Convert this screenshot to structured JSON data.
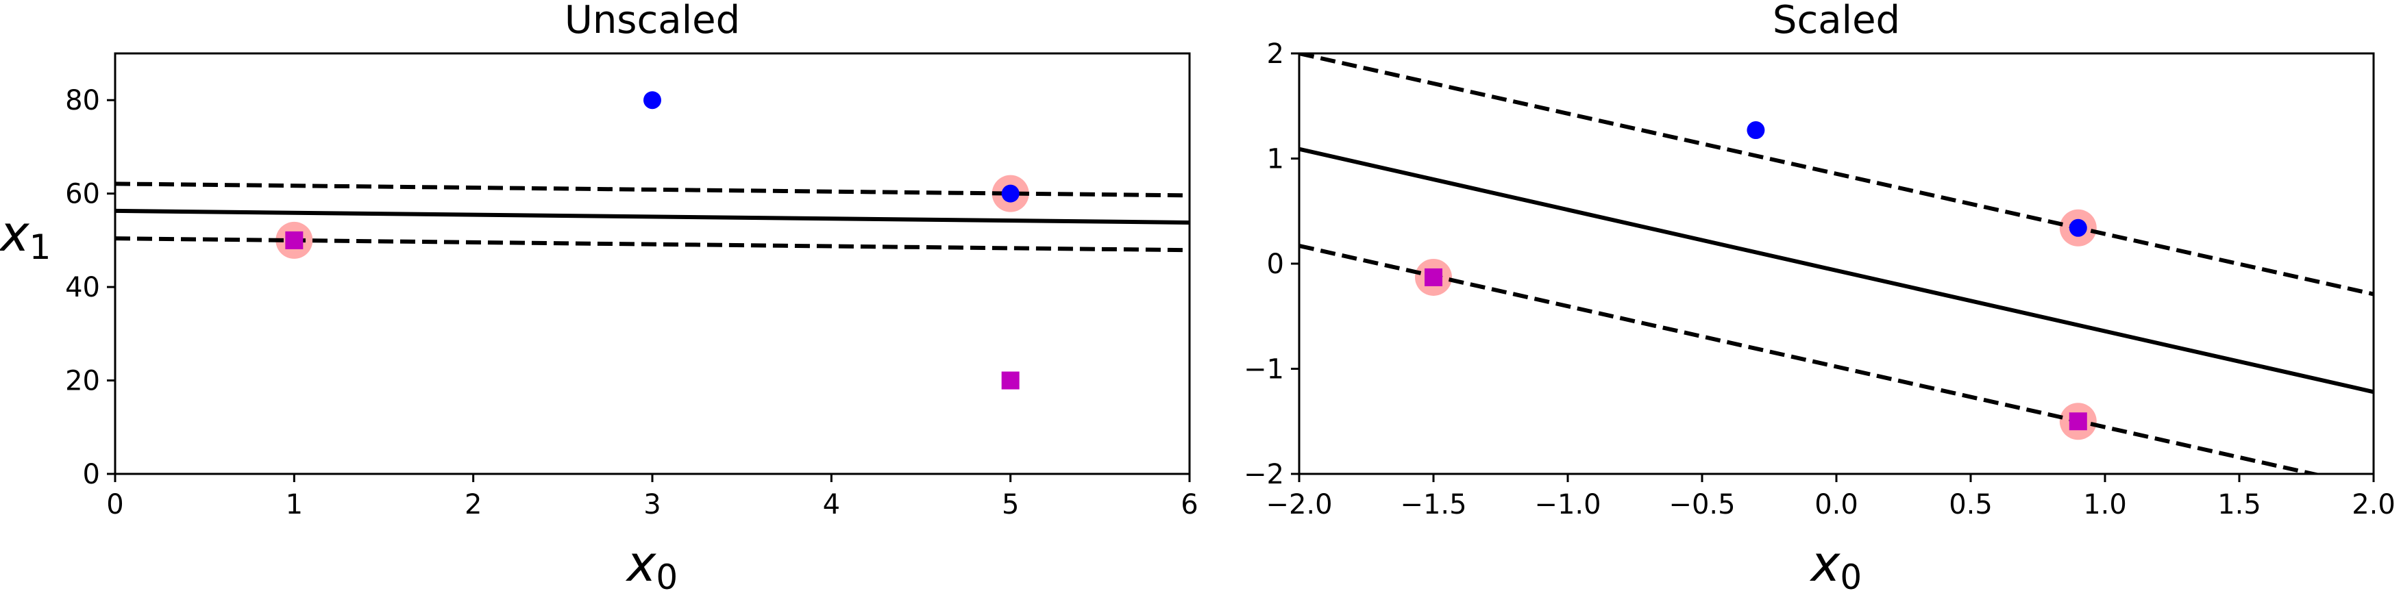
{
  "chart_data": [
    {
      "type": "scatter",
      "title": "Unscaled",
      "xlabel": {
        "base": "x",
        "sub": "0"
      },
      "ylabel": {
        "base": "x",
        "sub": "1"
      },
      "xlim": [
        0,
        6
      ],
      "ylim": [
        0,
        90
      ],
      "xticks": [
        0,
        1,
        2,
        3,
        4,
        5,
        6
      ],
      "yticks": [
        0,
        20,
        40,
        60,
        80
      ],
      "xtick_labels": [
        "0",
        "1",
        "2",
        "3",
        "4",
        "5",
        "6"
      ],
      "ytick_labels": [
        "0",
        "20",
        "40",
        "60",
        "80"
      ],
      "grid": false,
      "colors": {
        "class_1": "#0000ff",
        "class_0": "#bf00bf",
        "support_vector": "#ffaaaa",
        "line": "#000000"
      },
      "series": [
        {
          "marker": "circle",
          "color": "#0000ff",
          "points": [
            [
              3,
              80
            ],
            [
              5,
              60
            ]
          ]
        },
        {
          "marker": "square",
          "color": "#bf00bf",
          "points": [
            [
              1,
              50
            ],
            [
              5,
              20
            ]
          ]
        }
      ],
      "support_vectors": [
        [
          1,
          50
        ],
        [
          5,
          60
        ]
      ],
      "lines": [
        {
          "style": "solid",
          "points": [
            [
              0,
              56.3
            ],
            [
              6,
              53.8
            ]
          ]
        },
        {
          "style": "dashed",
          "points": [
            [
              0,
              62.1
            ],
            [
              6,
              59.6
            ]
          ]
        },
        {
          "style": "dashed",
          "points": [
            [
              0,
              50.4
            ],
            [
              6,
              47.9
            ]
          ]
        }
      ]
    },
    {
      "type": "scatter",
      "title": "Scaled",
      "xlabel": {
        "base": "x",
        "sub": "0"
      },
      "ylabel": null,
      "xlim": [
        -2.0,
        2.0
      ],
      "ylim": [
        -2,
        2
      ],
      "xticks": [
        -2.0,
        -1.5,
        -1.0,
        -0.5,
        0.0,
        0.5,
        1.0,
        1.5,
        2.0
      ],
      "yticks": [
        -2,
        -1,
        0,
        1,
        2
      ],
      "xtick_labels": [
        "−2.0",
        "−1.5",
        "−1.0",
        "−0.5",
        "0.0",
        "0.5",
        "1.0",
        "1.5",
        "2.0"
      ],
      "ytick_labels": [
        "−2",
        "−1",
        "0",
        "1",
        "2"
      ],
      "grid": false,
      "colors": {
        "class_1": "#0000ff",
        "class_0": "#bf00bf",
        "support_vector": "#ffaaaa",
        "line": "#000000"
      },
      "series": [
        {
          "marker": "circle",
          "color": "#0000ff",
          "points": [
            [
              -0.3,
              1.27
            ],
            [
              0.9,
              0.34
            ]
          ]
        },
        {
          "marker": "square",
          "color": "#bf00bf",
          "points": [
            [
              -1.5,
              -0.13
            ],
            [
              0.9,
              -1.5
            ]
          ]
        }
      ],
      "support_vectors": [
        [
          -1.5,
          -0.13
        ],
        [
          0.9,
          0.34
        ],
        [
          0.9,
          -1.5
        ]
      ],
      "lines": [
        {
          "style": "solid",
          "points": [
            [
              -2.0,
              1.09
            ],
            [
              2.0,
              -1.22
            ]
          ]
        },
        {
          "style": "dashed",
          "points": [
            [
              -2.0,
              2.0
            ],
            [
              2.0,
              -0.29
            ]
          ]
        },
        {
          "style": "dashed",
          "points": [
            [
              -2.0,
              0.17
            ],
            [
              2.0,
              -2.13
            ]
          ]
        }
      ]
    }
  ]
}
